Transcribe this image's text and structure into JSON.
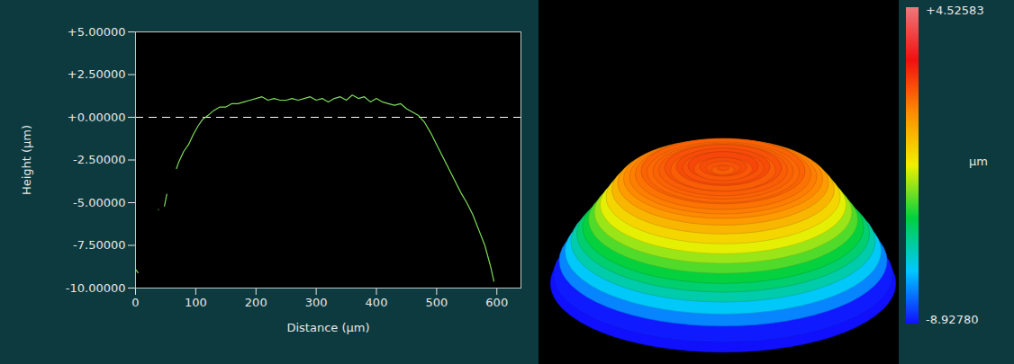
{
  "chart_data": [
    {
      "type": "line",
      "x_label": "Distance (µm)",
      "y_label": "Height (µm)",
      "x": [
        0,
        4,
        20,
        38,
        44,
        48,
        52,
        60,
        68,
        72,
        80,
        88,
        96,
        104,
        112,
        120,
        130,
        140,
        150,
        160,
        170,
        180,
        190,
        200,
        210,
        220,
        230,
        240,
        250,
        260,
        270,
        280,
        290,
        300,
        310,
        320,
        330,
        340,
        350,
        360,
        370,
        380,
        390,
        400,
        410,
        420,
        430,
        440,
        450,
        460,
        470,
        480,
        490,
        500,
        510,
        520,
        530,
        540,
        550,
        560,
        570,
        580,
        590,
        595
      ],
      "values": [
        -8.9,
        -9.1,
        null,
        -5.4,
        null,
        -5.2,
        -4.5,
        null,
        -3.0,
        -2.6,
        -2.0,
        -1.6,
        -1.0,
        -0.5,
        -0.1,
        0.1,
        0.4,
        0.6,
        0.6,
        0.8,
        0.8,
        0.9,
        1.0,
        1.1,
        1.2,
        1.0,
        1.1,
        1.0,
        1.0,
        1.1,
        1.0,
        1.1,
        1.2,
        1.0,
        1.1,
        0.9,
        1.1,
        1.2,
        1.0,
        1.3,
        1.1,
        1.2,
        0.9,
        1.1,
        0.9,
        0.8,
        0.7,
        0.8,
        0.5,
        0.3,
        0.1,
        -0.3,
        -0.9,
        -1.6,
        -2.3,
        -3.0,
        -3.7,
        -4.4,
        -5.0,
        -5.7,
        -6.6,
        -7.5,
        -8.8,
        -9.6
      ],
      "color": "#7ddc5a",
      "xlim": [
        0,
        640
      ],
      "xticks": [
        0,
        100,
        200,
        300,
        400,
        500,
        600
      ],
      "ylim": [
        -10,
        5
      ],
      "yticks": [
        {
          "value": 5,
          "label": "+5.00000"
        },
        {
          "value": 2.5,
          "label": "+2.50000"
        },
        {
          "value": 0,
          "label": "+0.00000"
        },
        {
          "value": -2.5,
          "label": "-2.50000"
        },
        {
          "value": -5,
          "label": "-5.00000"
        },
        {
          "value": -7.5,
          "label": "-7.50000"
        },
        {
          "value": -10,
          "label": "-10.00000"
        }
      ],
      "reference_lines": [
        {
          "y": 0,
          "line_style": "dashed"
        }
      ],
      "grid": false
    },
    {
      "type": "surface",
      "colorbar": {
        "range": [
          -8.9278,
          4.52583
        ],
        "ticks": [
          {
            "value": 4.52583,
            "label": "+4.52583"
          },
          {
            "value": -8.9278,
            "label": "-8.92780"
          }
        ],
        "label": "µm",
        "colors": [
          "#1010ff",
          "#00c8ff",
          "#00d040",
          "#f0f000",
          "#ff8c00",
          "#f01010",
          "#f07878"
        ]
      }
    }
  ]
}
